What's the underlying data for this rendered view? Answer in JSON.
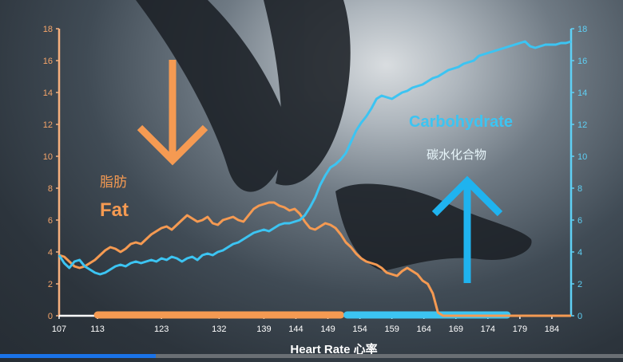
{
  "chart_data": {
    "type": "line",
    "xlabel": "Heart Rate 心率",
    "x_ticks": [
      "107",
      "113",
      "123",
      "132",
      "139",
      "144",
      "149",
      "154",
      "159",
      "164",
      "169",
      "174",
      "179",
      "184"
    ],
    "y_ticks": [
      "0",
      "2",
      "4",
      "6",
      "8",
      "10",
      "12",
      "14",
      "16",
      "18"
    ],
    "ylim": [
      0,
      18
    ],
    "series": [
      {
        "name": "Fat",
        "name_cn": "脂肪",
        "color": "#f59a52",
        "axis": "left",
        "values": [
          3.8,
          3.7,
          3.4,
          3.1,
          3.0,
          3.1,
          3.3,
          3.5,
          3.8,
          4.1,
          4.3,
          4.2,
          4.0,
          4.2,
          4.5,
          4.6,
          4.5,
          4.8,
          5.1,
          5.3,
          5.5,
          5.6,
          5.4,
          5.7,
          6.0,
          6.3,
          6.1,
          5.9,
          6.0,
          6.2,
          5.8,
          5.7,
          6.0,
          6.1,
          6.2,
          6.0,
          5.9,
          6.3,
          6.7,
          6.9,
          7.0,
          7.1,
          7.1,
          6.9,
          6.8,
          6.6,
          6.7,
          6.4,
          5.9,
          5.5,
          5.4,
          5.6,
          5.8,
          5.7,
          5.5,
          5.1,
          4.6,
          4.3,
          3.9,
          3.6,
          3.4,
          3.3,
          3.2,
          3.0,
          2.7,
          2.6,
          2.5,
          2.8,
          3.0,
          2.8,
          2.6,
          2.2,
          2.0,
          1.4,
          0.2,
          0.0,
          0.0,
          0.0,
          0.0,
          0.0,
          0.0,
          0.0,
          0.0,
          0.0,
          0.0,
          0.0,
          0.0,
          0.0,
          0.0,
          0.0,
          0.0,
          0.0,
          0.0,
          0.0,
          0.0,
          0.0,
          0.0,
          0.0,
          0.0,
          0.0,
          0.0
        ]
      },
      {
        "name": "Carbohydrate",
        "name_cn": "碳水化合物",
        "color": "#3cc4f2",
        "axis": "right",
        "values": [
          3.8,
          3.3,
          3.0,
          3.4,
          3.5,
          3.1,
          2.9,
          2.7,
          2.6,
          2.7,
          2.9,
          3.1,
          3.2,
          3.1,
          3.3,
          3.4,
          3.3,
          3.4,
          3.5,
          3.4,
          3.6,
          3.5,
          3.7,
          3.6,
          3.4,
          3.6,
          3.7,
          3.5,
          3.8,
          3.9,
          3.8,
          4.0,
          4.1,
          4.3,
          4.5,
          4.6,
          4.8,
          5.0,
          5.2,
          5.3,
          5.4,
          5.3,
          5.5,
          5.7,
          5.8,
          5.8,
          5.9,
          6.0,
          6.3,
          6.8,
          7.4,
          8.2,
          8.8,
          9.3,
          9.5,
          9.8,
          10.2,
          10.9,
          11.6,
          12.1,
          12.5,
          13.0,
          13.6,
          13.8,
          13.7,
          13.6,
          13.8,
          14.0,
          14.1,
          14.3,
          14.4,
          14.5,
          14.7,
          14.9,
          15.0,
          15.2,
          15.4,
          15.5,
          15.6,
          15.8,
          15.9,
          16.0,
          16.3,
          16.4,
          16.5,
          16.6,
          16.7,
          16.8,
          16.9,
          17.0,
          17.1,
          17.2,
          16.9,
          16.8,
          16.9,
          17.0,
          17.0,
          17.0,
          17.1,
          17.1,
          17.2
        ]
      }
    ],
    "zones": [
      {
        "color": "#f59a52",
        "from": 113,
        "to": 151
      },
      {
        "color": "#3cc4f2",
        "from": 152,
        "to": 177
      }
    ],
    "arrows": [
      {
        "direction": "down",
        "color": "#f59a52"
      },
      {
        "direction": "up",
        "color": "#3cc4f2"
      }
    ]
  },
  "video": {
    "progress": 0.25,
    "progress_color": "#1a73e8"
  }
}
